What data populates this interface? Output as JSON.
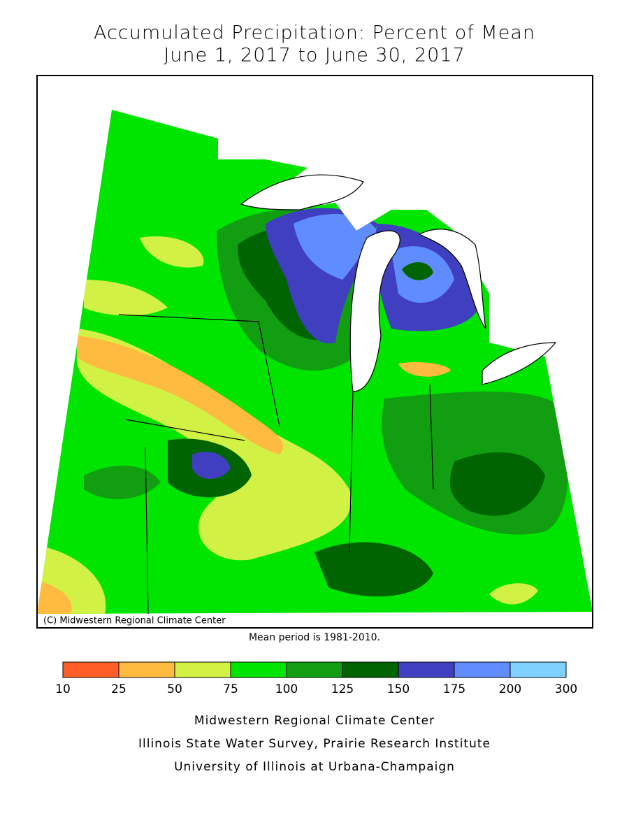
{
  "title": [
    "Accumulated Precipitation: Percent of Mean",
    "June 1, 2017 to June 30, 2017"
  ],
  "map": {
    "copyright": "(C) Midwestern Regional Climate Center"
  },
  "note": "Mean period is 1981-2010.",
  "legend": {
    "bins": [
      10,
      25,
      50,
      75,
      100,
      125,
      150,
      175,
      200,
      300
    ],
    "colors": [
      "#ff5f26",
      "#ffbb3f",
      "#d1f244",
      "#00e500",
      "#119f11",
      "#006400",
      "#3f3fbf",
      "#5f8cff",
      "#7fd2ff"
    ]
  },
  "footer": [
    "Midwestern Regional Climate Center",
    "Illinois State Water Survey, Prairie Research Institute",
    "University of Illinois at Urbana-Champaign"
  ]
}
